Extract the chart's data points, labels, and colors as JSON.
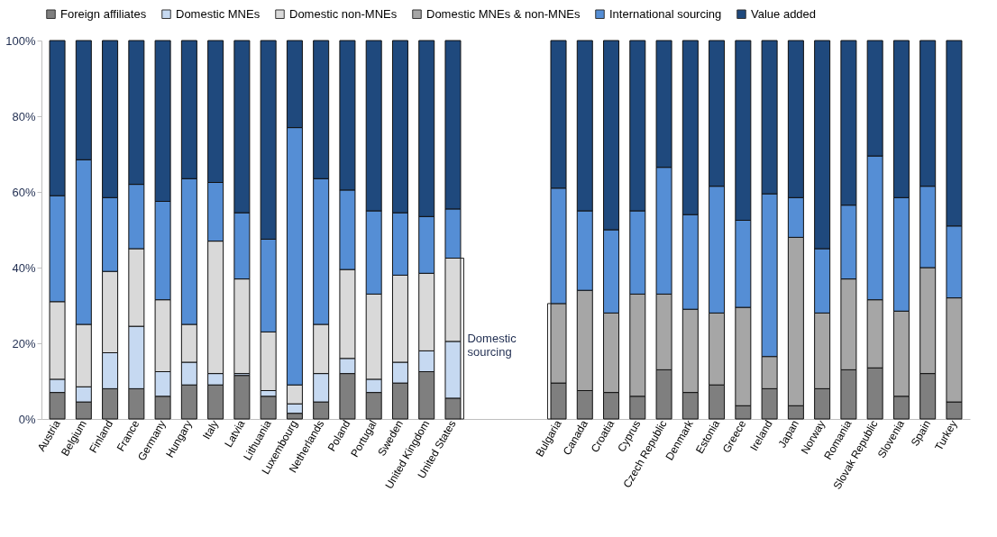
{
  "chart_data": {
    "type": "bar",
    "stacked": true,
    "legend": "top",
    "grid": false,
    "categories": [
      "Austria",
      "Belgium",
      "Finland",
      "France",
      "Germany",
      "Hungary",
      "Italy",
      "Latvia",
      "Lithuania",
      "Luxembourg",
      "Netherlands",
      "Poland",
      "Portugal",
      "Sweden",
      "United Kingdom",
      "United States",
      null,
      null,
      null,
      "Bulgaria",
      "Canada",
      "Croatia",
      "Cyprus",
      "Czech Republic",
      "Denmark",
      "Estonia",
      "Greece",
      "Ireland",
      "Japan",
      "Norway",
      "Romania",
      "Slovak Republic",
      "Slovenia",
      "Spain",
      "Turkey"
    ],
    "ylim": [
      0,
      100
    ],
    "yticks": [
      {
        "value": 0,
        "label": "0%"
      },
      {
        "value": 20,
        "label": "20%"
      },
      {
        "value": 40,
        "label": "40%"
      },
      {
        "value": 60,
        "label": "60%"
      },
      {
        "value": 80,
        "label": "80%"
      },
      {
        "value": 100,
        "label": "100%"
      }
    ],
    "series": [
      {
        "name": "Foreign affiliates",
        "color": "#7f7f7f",
        "values": [
          7,
          4.5,
          8,
          8,
          6,
          9,
          9,
          11.5,
          6,
          1.5,
          4.5,
          12,
          7,
          9.5,
          12.5,
          5.5,
          null,
          null,
          null,
          9.5,
          7.5,
          7,
          6,
          13,
          7,
          9,
          3.5,
          8,
          3.5,
          8,
          13,
          13.5,
          6,
          12,
          4.5
        ]
      },
      {
        "name": "Domestic MNEs",
        "color": "#c6d9f1",
        "values": [
          3.5,
          4,
          9.5,
          16.5,
          6.5,
          6,
          3,
          0.5,
          1.5,
          2.5,
          7.5,
          4,
          3.5,
          5.5,
          5.5,
          15,
          null,
          null,
          null,
          null,
          null,
          null,
          null,
          null,
          null,
          null,
          null,
          null,
          null,
          null,
          null,
          null,
          null,
          null,
          null
        ]
      },
      {
        "name": "Domestic non-MNEs",
        "color": "#d9d9d9",
        "values": [
          20.5,
          16.5,
          21.5,
          20.5,
          19,
          10,
          35,
          25,
          15.5,
          5,
          13,
          23.5,
          22.5,
          23,
          20.5,
          22,
          null,
          null,
          null,
          null,
          null,
          null,
          null,
          null,
          null,
          null,
          null,
          null,
          null,
          null,
          null,
          null,
          null,
          null,
          null
        ]
      },
      {
        "name": "Domestic MNEs & non-MNEs",
        "color": "#a6a6a6",
        "values": [
          null,
          null,
          null,
          null,
          null,
          null,
          null,
          null,
          null,
          null,
          null,
          null,
          null,
          null,
          null,
          null,
          null,
          null,
          null,
          21,
          26.5,
          21,
          27,
          20,
          22,
          19,
          26,
          8.5,
          44.5,
          20,
          24,
          18,
          22.5,
          28,
          27.5
        ]
      },
      {
        "name": "International sourcing",
        "color": "#558ed5",
        "values": [
          28,
          43.5,
          19.5,
          17,
          26,
          38.5,
          15.5,
          17.5,
          24.5,
          68,
          38.5,
          21,
          22,
          16.5,
          15,
          13,
          null,
          null,
          null,
          30.5,
          21,
          22,
          22,
          33.5,
          25,
          33.5,
          23,
          43,
          10.5,
          17,
          19.5,
          38,
          30,
          21.5,
          19
        ]
      },
      {
        "name": "Value added",
        "color": "#1f497d",
        "values": [
          41,
          31.5,
          41.5,
          38,
          42.5,
          36.5,
          37.5,
          45.5,
          52.5,
          23,
          36.5,
          39.5,
          45,
          45.5,
          46.5,
          44.5,
          null,
          null,
          null,
          39,
          45,
          50,
          45,
          33.5,
          46,
          38.5,
          47.5,
          40.5,
          41.5,
          55,
          43.5,
          30.5,
          41.5,
          38.5,
          49
        ]
      }
    ],
    "annotations": [
      "Domestic sourcing"
    ]
  }
}
